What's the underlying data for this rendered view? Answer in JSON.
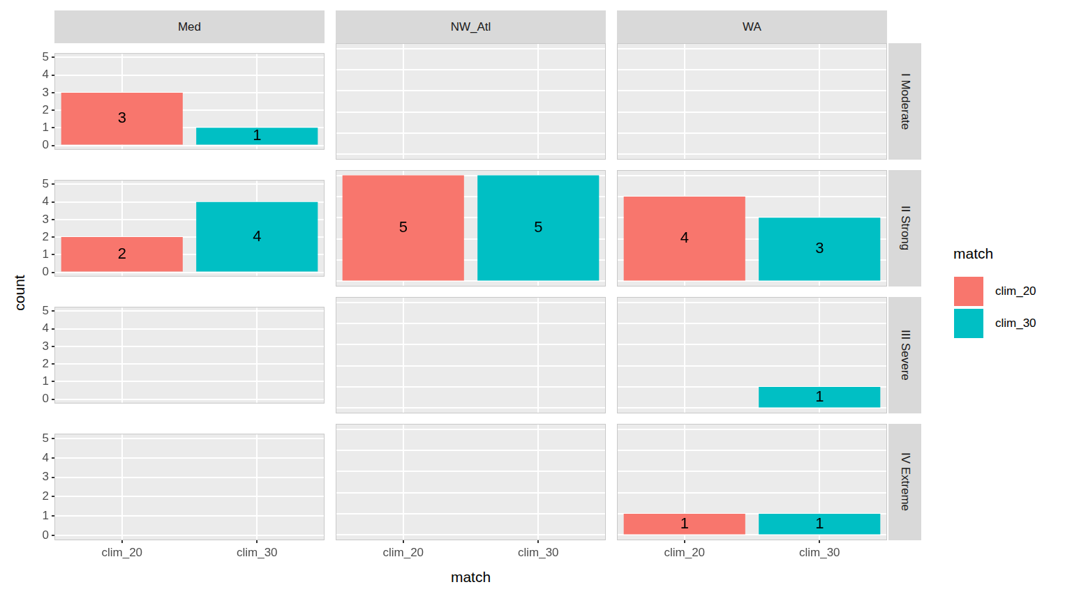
{
  "chart_data": {
    "type": "bar",
    "x_label": "match",
    "y_label": "count",
    "legend_title": "match",
    "legend": "right",
    "categories": [
      "clim_20",
      "clim_30"
    ],
    "colors": [
      "#F8766D",
      "#00BFC4"
    ],
    "facet_cols": [
      "Med",
      "NW_Atl",
      "WA"
    ],
    "facet_rows": [
      "I Moderate",
      "II Strong",
      "III Severe",
      "IV Extreme"
    ],
    "panels": [
      {
        "col": "Med",
        "row": "I Moderate",
        "values": [
          3,
          1
        ]
      },
      {
        "col": "Med",
        "row": "II Strong",
        "values": [
          2,
          4
        ]
      },
      {
        "col": "Med",
        "row": "III Severe",
        "values": [
          null,
          null
        ]
      },
      {
        "col": "Med",
        "row": "IV Extreme",
        "values": [
          null,
          null
        ]
      },
      {
        "col": "NW_Atl",
        "row": "I Moderate",
        "values": [
          null,
          null
        ]
      },
      {
        "col": "NW_Atl",
        "row": "II Strong",
        "values": [
          5,
          5
        ]
      },
      {
        "col": "NW_Atl",
        "row": "III Severe",
        "values": [
          null,
          null
        ]
      },
      {
        "col": "NW_Atl",
        "row": "IV Extreme",
        "values": [
          null,
          null
        ]
      },
      {
        "col": "WA",
        "row": "I Moderate",
        "values": [
          null,
          null
        ]
      },
      {
        "col": "WA",
        "row": "II Strong",
        "values": [
          4,
          3
        ]
      },
      {
        "col": "WA",
        "row": "III Severe",
        "values": [
          null,
          1
        ]
      },
      {
        "col": "WA",
        "row": "IV Extreme",
        "values": [
          1,
          1
        ]
      }
    ],
    "ylim": [
      -0.25,
      5.25
    ],
    "yticks": [
      0,
      1,
      2,
      3,
      4,
      5
    ],
    "grid": true,
    "data_labels": true
  }
}
